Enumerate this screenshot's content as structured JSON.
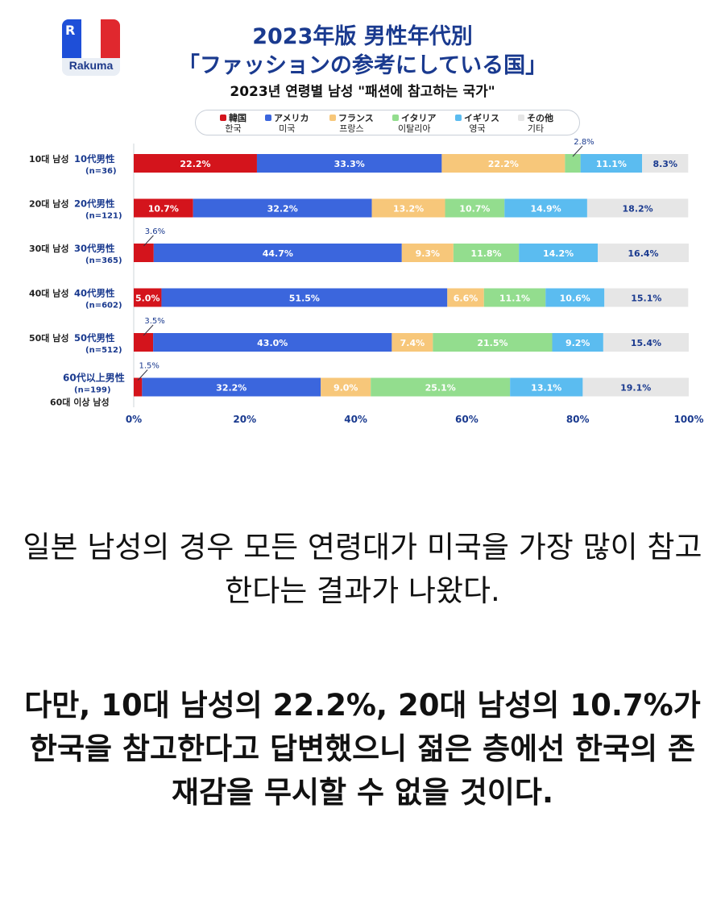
{
  "logo": {
    "letter": "R",
    "word": "Rakuma"
  },
  "titles": {
    "line1": "2023年版 男性年代別",
    "line2": "「ファッションの参考にしている国」",
    "korean": "2023년 연령별 남성 \"패션에 참고하는 국가\""
  },
  "colors": {
    "korea": "#d4141c",
    "usa": "#3b66dd",
    "france": "#f7c77a",
    "italy": "#93dd8e",
    "uk": "#5bbcf0",
    "other": "#e6e6e6",
    "title": "#1a3a8f"
  },
  "chart_data": {
    "type": "bar",
    "orientation": "horizontal-stacked-100",
    "xlim": [
      0,
      100
    ],
    "xticks": [
      "0%",
      "20%",
      "40%",
      "60%",
      "80%",
      "100%"
    ],
    "legend_position": "top",
    "categories": [
      {
        "ko": "10대 남성",
        "jp": "10代男性",
        "n": "(n=36)"
      },
      {
        "ko": "20대 남성",
        "jp": "20代男性",
        "n": "(n=121)"
      },
      {
        "ko": "30대 남성",
        "jp": "30代男性",
        "n": "(n=365)"
      },
      {
        "ko": "40대 남성",
        "jp": "40代男性",
        "n": "(n=602)"
      },
      {
        "ko": "50대 남성",
        "jp": "50代男性",
        "n": "(n=512)"
      },
      {
        "ko": "60대 이상 남성",
        "jp": "60代以上男性",
        "n": "(n=199)"
      }
    ],
    "series": [
      {
        "name": "韓国",
        "name_ko": "한국",
        "color": "#d4141c",
        "values": [
          22.2,
          10.7,
          3.6,
          5.0,
          3.5,
          1.5
        ]
      },
      {
        "name": "アメリカ",
        "name_ko": "미국",
        "color": "#3b66dd",
        "values": [
          33.3,
          32.2,
          44.7,
          51.5,
          43.0,
          32.2
        ]
      },
      {
        "name": "フランス",
        "name_ko": "프랑스",
        "color": "#f7c77a",
        "values": [
          22.2,
          13.2,
          9.3,
          6.6,
          7.4,
          9.0
        ]
      },
      {
        "name": "イタリア",
        "name_ko": "이탈리아",
        "color": "#93dd8e",
        "values": [
          2.8,
          10.7,
          11.8,
          11.1,
          21.5,
          25.1
        ]
      },
      {
        "name": "イギリス",
        "name_ko": "영국",
        "color": "#5bbcf0",
        "values": [
          11.1,
          14.9,
          14.2,
          10.6,
          9.2,
          13.1
        ]
      },
      {
        "name": "その他",
        "name_ko": "기타",
        "color": "#e6e6e6",
        "values": [
          8.3,
          18.2,
          16.4,
          15.1,
          15.4,
          19.1
        ]
      }
    ],
    "labels": [
      [
        "22.2%",
        "33.3%",
        "22.2%",
        "2.8%",
        "11.1%",
        "8.3%"
      ],
      [
        "10.7%",
        "32.2%",
        "13.2%",
        "10.7%",
        "14.9%",
        "18.2%"
      ],
      [
        "3.6%",
        "44.7%",
        "9.3%",
        "11.8%",
        "14.2%",
        "16.4%"
      ],
      [
        "5.0%",
        "51.5%",
        "6.6%",
        "11.1%",
        "10.6%",
        "15.1%"
      ],
      [
        "3.5%",
        "43.0%",
        "7.4%",
        "21.5%",
        "9.2%",
        "15.4%"
      ],
      [
        "1.5%",
        "32.2%",
        "9.0%",
        "25.1%",
        "13.1%",
        "19.1%"
      ]
    ]
  },
  "caption": {
    "p1": "일본 남성의 경우 모든 연령대가 미국을 가장 많이 참고한다는 결과가 나왔다.",
    "p2": "다만, 10대 남성의 22.2%, 20대 남성의 10.7%가 한국을 참고한다고 답변했으니 젊은 층에선 한국의 존재감을 무시할 수 없을 것이다."
  }
}
